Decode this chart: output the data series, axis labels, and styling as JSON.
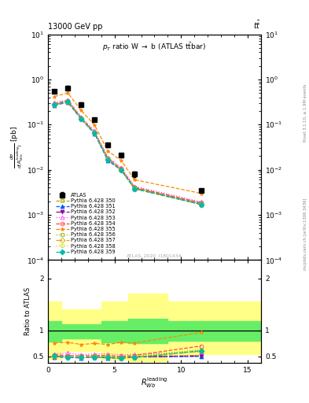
{
  "title_left": "13000 GeV pp",
  "title_right": "tt",
  "plot_title": "p_{T} ratio W -> b (ATLAS ttbar)",
  "xlabel": "R_{Wb}^{leading}",
  "watermark": "ATLAS_2020_I1801434",
  "xlim": [
    0,
    16
  ],
  "ylim_main": [
    0.0001,
    10
  ],
  "ylim_ratio": [
    0.38,
    2.35
  ],
  "atlas_x": [
    0.5,
    1.5,
    2.5,
    3.5,
    4.5,
    5.5,
    6.5,
    11.5
  ],
  "atlas_y": [
    0.55,
    0.65,
    0.28,
    0.13,
    0.035,
    0.021,
    0.008,
    0.0035
  ],
  "atlas_yerr": [
    0.05,
    0.06,
    0.025,
    0.012,
    0.003,
    0.002,
    0.001,
    0.0003
  ],
  "series": [
    {
      "label": "Pythia 6.428 350",
      "color": "#aaaa00",
      "linestyle": "--",
      "marker": "s",
      "fillstyle": "none",
      "x": [
        0.5,
        1.5,
        2.5,
        3.5,
        4.5,
        5.5,
        6.5,
        11.5
      ],
      "y": [
        0.28,
        0.32,
        0.135,
        0.065,
        0.017,
        0.01,
        0.004,
        0.0018
      ],
      "ratio": [
        0.51,
        0.49,
        0.48,
        0.5,
        0.49,
        0.48,
        0.5,
        0.52
      ]
    },
    {
      "label": "Pythia 6.428 351",
      "color": "#0055ff",
      "linestyle": "--",
      "marker": "^",
      "fillstyle": "full",
      "x": [
        0.5,
        1.5,
        2.5,
        3.5,
        4.5,
        5.5,
        6.5,
        11.5
      ],
      "y": [
        0.27,
        0.31,
        0.132,
        0.063,
        0.016,
        0.0098,
        0.0038,
        0.0017
      ],
      "ratio": [
        0.49,
        0.48,
        0.47,
        0.49,
        0.47,
        0.47,
        0.49,
        0.5
      ]
    },
    {
      "label": "Pythia 6.428 352",
      "color": "#8800aa",
      "linestyle": "-.",
      "marker": "v",
      "fillstyle": "full",
      "x": [
        0.5,
        1.5,
        2.5,
        3.5,
        4.5,
        5.5,
        6.5,
        11.5
      ],
      "y": [
        0.28,
        0.315,
        0.133,
        0.064,
        0.017,
        0.0099,
        0.0039,
        0.00175
      ],
      "ratio": [
        0.51,
        0.49,
        0.48,
        0.49,
        0.48,
        0.47,
        0.49,
        0.51
      ]
    },
    {
      "label": "Pythia 6.428 353",
      "color": "#ff44ff",
      "linestyle": ":",
      "marker": "^",
      "fillstyle": "none",
      "x": [
        0.5,
        1.5,
        2.5,
        3.5,
        4.5,
        5.5,
        6.5,
        11.5
      ],
      "y": [
        0.305,
        0.355,
        0.148,
        0.072,
        0.019,
        0.011,
        0.0043,
        0.00195
      ],
      "ratio": [
        0.55,
        0.57,
        0.53,
        0.55,
        0.55,
        0.53,
        0.54,
        0.59
      ]
    },
    {
      "label": "Pythia 6.428 354",
      "color": "#ff4444",
      "linestyle": "--",
      "marker": "o",
      "fillstyle": "none",
      "x": [
        0.5,
        1.5,
        2.5,
        3.5,
        4.5,
        5.5,
        6.5,
        11.5
      ],
      "y": [
        0.29,
        0.34,
        0.142,
        0.068,
        0.018,
        0.0105,
        0.0041,
        0.00185
      ],
      "ratio": [
        0.53,
        0.52,
        0.51,
        0.52,
        0.52,
        0.5,
        0.52,
        0.7
      ]
    },
    {
      "label": "Pythia 6.428 355",
      "color": "#ff8800",
      "linestyle": "--",
      "marker": "*",
      "fillstyle": "full",
      "x": [
        0.5,
        1.5,
        2.5,
        3.5,
        4.5,
        5.5,
        6.5,
        11.5
      ],
      "y": [
        0.42,
        0.5,
        0.205,
        0.098,
        0.026,
        0.016,
        0.006,
        0.003
      ],
      "ratio": [
        0.76,
        0.77,
        0.73,
        0.75,
        0.73,
        0.77,
        0.76,
        0.96
      ]
    },
    {
      "label": "Pythia 6.428 356",
      "color": "#88bb00",
      "linestyle": ":",
      "marker": "s",
      "fillstyle": "none",
      "x": [
        0.5,
        1.5,
        2.5,
        3.5,
        4.5,
        5.5,
        6.5,
        11.5
      ],
      "y": [
        0.28,
        0.325,
        0.137,
        0.066,
        0.017,
        0.01,
        0.004,
        0.00178
      ],
      "ratio": [
        0.51,
        0.5,
        0.49,
        0.51,
        0.5,
        0.49,
        0.5,
        0.63
      ]
    },
    {
      "label": "Pythia 6.428 357",
      "color": "#ddaa00",
      "linestyle": "-.",
      "marker": "D",
      "fillstyle": "none",
      "x": [
        0.5,
        1.5,
        2.5,
        3.5,
        4.5,
        5.5,
        6.5,
        11.5
      ],
      "y": [
        0.275,
        0.315,
        0.133,
        0.064,
        0.017,
        0.0098,
        0.0038,
        0.0017
      ],
      "ratio": [
        0.5,
        0.48,
        0.48,
        0.49,
        0.48,
        0.47,
        0.48,
        0.6
      ]
    },
    {
      "label": "Pythia 6.428 358",
      "color": "#ccdd00",
      "linestyle": ":",
      "marker": "p",
      "fillstyle": "none",
      "x": [
        0.5,
        1.5,
        2.5,
        3.5,
        4.5,
        5.5,
        6.5,
        11.5
      ],
      "y": [
        0.28,
        0.32,
        0.135,
        0.065,
        0.017,
        0.0099,
        0.0039,
        0.00175
      ],
      "ratio": [
        0.51,
        0.49,
        0.48,
        0.5,
        0.49,
        0.47,
        0.49,
        0.62
      ]
    },
    {
      "label": "Pythia 6.428 359",
      "color": "#00bbaa",
      "linestyle": "--",
      "marker": "D",
      "fillstyle": "full",
      "x": [
        0.5,
        1.5,
        2.5,
        3.5,
        4.5,
        5.5,
        6.5,
        11.5
      ],
      "y": [
        0.28,
        0.32,
        0.134,
        0.064,
        0.0168,
        0.0098,
        0.0038,
        0.00172
      ],
      "ratio": [
        0.51,
        0.49,
        0.48,
        0.49,
        0.48,
        0.47,
        0.48,
        0.61
      ]
    }
  ],
  "band_yellow_x": [
    0,
    1,
    1,
    4,
    4,
    6,
    6,
    9,
    9,
    16
  ],
  "band_yellow_top": [
    1.55,
    1.55,
    1.4,
    1.4,
    1.55,
    1.55,
    1.7,
    1.7,
    1.55,
    1.55
  ],
  "band_yellow_bot": [
    0.45,
    0.45,
    0.6,
    0.6,
    0.44,
    0.44,
    0.4,
    0.4,
    0.55,
    0.55
  ],
  "band_green_x": [
    0,
    1,
    1,
    4,
    4,
    6,
    6,
    9,
    9,
    16
  ],
  "band_green_top": [
    1.18,
    1.18,
    1.12,
    1.12,
    1.18,
    1.18,
    1.22,
    1.22,
    1.18,
    1.18
  ],
  "band_green_bot": [
    0.78,
    0.78,
    0.85,
    0.85,
    0.77,
    0.77,
    0.75,
    0.75,
    0.8,
    0.8
  ]
}
